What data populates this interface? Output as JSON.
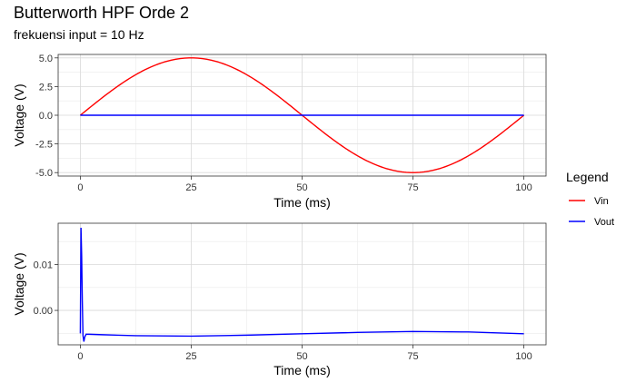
{
  "title": "Butterworth HPF Orde 2",
  "subtitle": "frekuensi input = 10 Hz",
  "legend": {
    "title": "Legend",
    "items": [
      {
        "name": "Vin",
        "color": "#ff0000"
      },
      {
        "name": "Vout",
        "color": "#0000ff"
      }
    ]
  },
  "chart_data": [
    {
      "type": "line",
      "xlabel": "Time (ms)",
      "ylabel": "Voltage (V)",
      "xlim": [
        -5,
        105
      ],
      "ylim": [
        -5.3,
        5.3
      ],
      "xticks": [
        0,
        25,
        50,
        75,
        100
      ],
      "xtick_labels": [
        "0",
        "25",
        "50",
        "75",
        "100"
      ],
      "yticks": [
        -5,
        -2.5,
        0,
        2.5,
        5
      ],
      "ytick_labels": [
        "-5.0",
        "-2.5",
        "0.0",
        "2.5",
        "5.0"
      ],
      "grid": true,
      "series": [
        {
          "name": "Vin",
          "color": "#ff0000",
          "amplitude": 5,
          "frequency_hz": 10,
          "x": [
            0,
            12.5,
            25,
            37.5,
            50,
            62.5,
            75,
            87.5,
            100
          ],
          "y": [
            0,
            3.54,
            5,
            3.54,
            0,
            -3.54,
            -5,
            -3.54,
            0
          ]
        },
        {
          "name": "Vout",
          "color": "#0000ff",
          "x": [
            0,
            25,
            50,
            75,
            100
          ],
          "y": [
            0,
            0,
            0,
            0,
            0
          ]
        }
      ]
    },
    {
      "type": "line",
      "xlabel": "Time (ms)",
      "ylabel": "Voltage (V)",
      "xlim": [
        -5,
        105
      ],
      "ylim": [
        -0.0075,
        0.019
      ],
      "xticks": [
        0,
        25,
        50,
        75,
        100
      ],
      "xtick_labels": [
        "0",
        "25",
        "50",
        "75",
        "100"
      ],
      "yticks": [
        0,
        0.01
      ],
      "ytick_labels": [
        "0.00",
        "0.01"
      ],
      "grid": true,
      "series": [
        {
          "name": "Vout",
          "color": "#0000ff",
          "x": [
            0,
            0.15,
            0.3,
            0.45,
            0.6,
            0.8,
            1.0,
            1.3,
            2,
            5,
            12.5,
            25,
            37.5,
            50,
            62.5,
            75,
            87.5,
            100
          ],
          "y": [
            -0.005,
            0.018,
            0.012,
            0.002,
            -0.0055,
            -0.0068,
            -0.0058,
            -0.0052,
            -0.0052,
            -0.0053,
            -0.0055,
            -0.0056,
            -0.0054,
            -0.0051,
            -0.0048,
            -0.0046,
            -0.0047,
            -0.0051
          ]
        }
      ]
    }
  ]
}
